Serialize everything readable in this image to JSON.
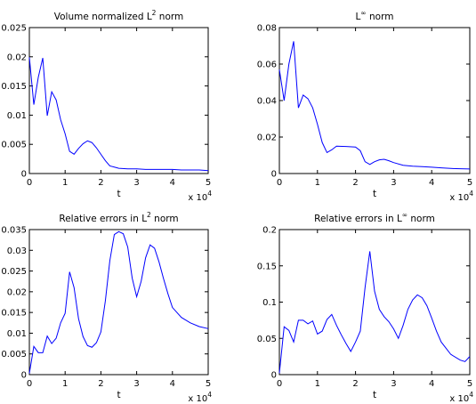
{
  "chart_data": [
    {
      "type": "line",
      "title": {
        "pre": "Volume normalized L",
        "sup": "2",
        "post": " norm"
      },
      "xlabel": "t",
      "x_exponent": {
        "base": "x 10",
        "power": "4"
      },
      "xlim": [
        0,
        5
      ],
      "ylim": [
        0,
        0.025
      ],
      "xticks": [
        "0",
        "1",
        "2",
        "3",
        "4",
        "5"
      ],
      "yticks": [
        "0",
        "0.005",
        "0.01",
        "0.015",
        "0.02",
        "0.025"
      ],
      "series": [
        {
          "color": "#0000ff",
          "x": [
            0,
            0.125,
            0.25,
            0.375,
            0.5,
            0.625,
            0.75,
            0.875,
            1.0,
            1.125,
            1.25,
            1.375,
            1.5,
            1.625,
            1.75,
            1.875,
            2.0,
            2.125,
            2.25,
            2.375,
            2.5,
            2.75,
            3.0,
            3.25,
            3.5,
            3.75,
            4.0,
            4.25,
            4.5,
            4.75,
            5.0
          ],
          "y": [
            0.0199,
            0.0118,
            0.0165,
            0.0198,
            0.0099,
            0.014,
            0.0126,
            0.0092,
            0.0068,
            0.0038,
            0.0033,
            0.0043,
            0.0051,
            0.0056,
            0.0053,
            0.0044,
            0.0033,
            0.0022,
            0.0013,
            0.0011,
            0.0009,
            0.0008,
            0.0008,
            0.0007,
            0.0007,
            0.0007,
            0.0007,
            0.0006,
            0.0006,
            0.0006,
            0.0005
          ]
        }
      ]
    },
    {
      "type": "line",
      "title": {
        "pre": "L",
        "sup": "∞",
        "post": " norm"
      },
      "xlabel": "t",
      "x_exponent": {
        "base": "x 10",
        "power": "4"
      },
      "xlim": [
        0,
        5
      ],
      "ylim": [
        0,
        0.08
      ],
      "xticks": [
        "0",
        "1",
        "2",
        "3",
        "4",
        "5"
      ],
      "yticks": [
        "0",
        "0.02",
        "0.04",
        "0.06",
        "0.08"
      ],
      "series": [
        {
          "color": "#0000ff",
          "x": [
            0,
            0.125,
            0.25,
            0.375,
            0.5,
            0.625,
            0.75,
            0.875,
            1.0,
            1.125,
            1.25,
            1.375,
            1.5,
            1.75,
            2.0,
            2.125,
            2.25,
            2.375,
            2.5,
            2.625,
            2.75,
            2.875,
            3.0,
            3.25,
            3.5,
            3.75,
            4.0,
            4.25,
            4.5,
            4.75,
            5.0
          ],
          "y": [
            0.057,
            0.04,
            0.06,
            0.0725,
            0.036,
            0.043,
            0.041,
            0.036,
            0.027,
            0.017,
            0.0115,
            0.013,
            0.015,
            0.0148,
            0.0145,
            0.0125,
            0.0065,
            0.005,
            0.0065,
            0.0075,
            0.0078,
            0.007,
            0.006,
            0.0045,
            0.004,
            0.0038,
            0.0035,
            0.0031,
            0.0028,
            0.0026,
            0.0025
          ]
        }
      ]
    },
    {
      "type": "line",
      "title": {
        "pre": "Relative errors in L",
        "sup": "2",
        "post": " norm"
      },
      "xlabel": "t",
      "x_exponent": {
        "base": "x 10",
        "power": "4"
      },
      "xlim": [
        0,
        5
      ],
      "ylim": [
        0,
        0.035
      ],
      "xticks": [
        "0",
        "1",
        "2",
        "3",
        "4",
        "5"
      ],
      "yticks": [
        "0",
        "0.005",
        "0.01",
        "0.015",
        "0.02",
        "0.025",
        "0.03",
        "0.035"
      ],
      "series": [
        {
          "color": "#0000ff",
          "x": [
            0,
            0.125,
            0.25,
            0.375,
            0.5,
            0.625,
            0.75,
            0.875,
            1.0,
            1.125,
            1.25,
            1.375,
            1.5,
            1.625,
            1.75,
            1.875,
            2.0,
            2.125,
            2.25,
            2.375,
            2.5,
            2.625,
            2.75,
            2.875,
            3.0,
            3.125,
            3.25,
            3.375,
            3.5,
            3.625,
            3.75,
            3.875,
            4.0,
            4.25,
            4.5,
            4.75,
            5.0
          ],
          "y": [
            0.0003,
            0.0068,
            0.0053,
            0.0053,
            0.0093,
            0.0075,
            0.0088,
            0.0125,
            0.0148,
            0.0248,
            0.021,
            0.0135,
            0.0092,
            0.007,
            0.0066,
            0.0077,
            0.0103,
            0.0178,
            0.0275,
            0.0338,
            0.0345,
            0.034,
            0.0308,
            0.0233,
            0.0188,
            0.0225,
            0.0282,
            0.0313,
            0.0305,
            0.0272,
            0.0232,
            0.0195,
            0.0162,
            0.0138,
            0.0125,
            0.0116,
            0.0111
          ]
        }
      ]
    },
    {
      "type": "line",
      "title": {
        "pre": "Relative errors in L",
        "sup": "∞",
        "post": " norm"
      },
      "xlabel": "t",
      "x_exponent": {
        "base": "x 10",
        "power": "4"
      },
      "xlim": [
        0,
        5
      ],
      "ylim": [
        0,
        0.2
      ],
      "xticks": [
        "0",
        "1",
        "2",
        "3",
        "4",
        "5"
      ],
      "yticks": [
        "0",
        "0.05",
        "0.1",
        "0.15",
        "0.2"
      ],
      "series": [
        {
          "color": "#0000ff",
          "x": [
            0,
            0.125,
            0.25,
            0.375,
            0.5,
            0.625,
            0.75,
            0.875,
            1.0,
            1.125,
            1.25,
            1.375,
            1.5,
            1.625,
            1.75,
            1.875,
            2.0,
            2.125,
            2.25,
            2.375,
            2.5,
            2.625,
            2.75,
            2.875,
            3.0,
            3.125,
            3.25,
            3.375,
            3.5,
            3.625,
            3.75,
            3.875,
            4.0,
            4.125,
            4.25,
            4.5,
            4.75,
            4.875,
            5.0
          ],
          "y": [
            0.002,
            0.066,
            0.061,
            0.045,
            0.075,
            0.075,
            0.07,
            0.074,
            0.056,
            0.06,
            0.076,
            0.083,
            0.068,
            0.055,
            0.043,
            0.032,
            0.045,
            0.06,
            0.12,
            0.17,
            0.115,
            0.09,
            0.08,
            0.073,
            0.063,
            0.05,
            0.068,
            0.09,
            0.103,
            0.11,
            0.106,
            0.095,
            0.078,
            0.06,
            0.045,
            0.028,
            0.02,
            0.018,
            0.025
          ]
        }
      ]
    }
  ]
}
